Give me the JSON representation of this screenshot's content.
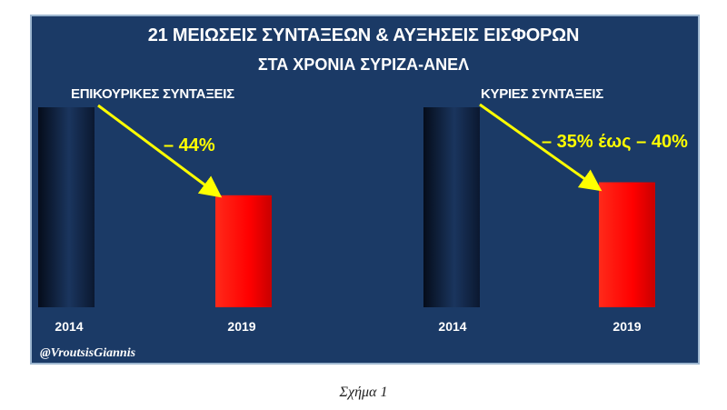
{
  "header": {
    "title_line1": "21 ΜΕΙΩΣΕΙΣ ΣΥΝΤΑΞΕΩΝ & ΑΥΞΗΣΕΙΣ ΕΙΣΦΟΡΩΝ",
    "title_line2": "ΣΤΑ ΧΡΟΝΙΑ ΣΥΡΙΖΑ-ΑΝΕΛ"
  },
  "watermark": "@VroutsisGiannis",
  "caption": "Σχήμα 1",
  "colors": {
    "background": "#1b3a66",
    "bar_2014": "#0f1f3a",
    "bar_2019": "#ff0000",
    "annotation": "#ffff00"
  },
  "chart_data": [
    {
      "type": "bar",
      "title": "ΕΠΙΚΟΥΡΙΚΕΣ ΣΥΝΤΑΞΕΙΣ",
      "categories": [
        "2014",
        "2019"
      ],
      "values": [
        100,
        56
      ],
      "annotation": "– 44%",
      "ylim": [
        0,
        100
      ],
      "grid": false
    },
    {
      "type": "bar",
      "title": "ΚΥΡΙΕΣ ΣΥΝΤΑΞΕΙΣ",
      "categories": [
        "2014",
        "2019"
      ],
      "values": [
        100,
        62.5
      ],
      "annotation": "– 35% έως – 40%",
      "ylim": [
        0,
        100
      ],
      "grid": false
    }
  ]
}
